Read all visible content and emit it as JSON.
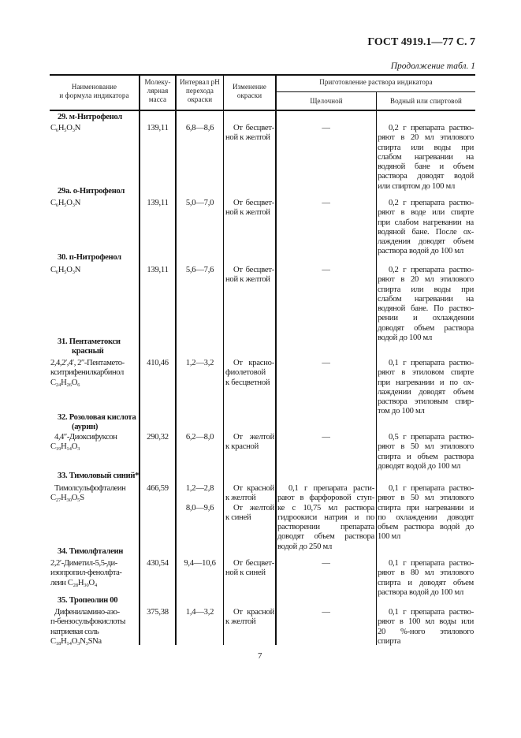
{
  "header": {
    "title": "ГОСТ 4919.1—77 С. 7",
    "continuation": "Продолжение табл. 1"
  },
  "table_header": {
    "name": [
      "Наименование",
      "и формула индикатора"
    ],
    "mass": [
      "Молеку-",
      "лярная",
      "масса"
    ],
    "ph": [
      "Интервал pH",
      "перехода",
      "окраски"
    ],
    "change": [
      "Изменение",
      "окраски"
    ],
    "preparation": "Приготовление раствора индикатора",
    "alkaline": "Щелочной",
    "aqueous": "Водный или спиртовой"
  },
  "rows": [
    {
      "title": [
        "29. м-Нитрофенол"
      ],
      "name": [
        "C₆H₅O₃N"
      ],
      "mass": "139,11",
      "ph": [
        "6,8—8,6"
      ],
      "change": [
        "От бесцвет-",
        "ной к желтой"
      ],
      "alkaline": [
        "—"
      ],
      "aqueous": [
        "0,2 г препарата раство-",
        "ряют в 20 мл этилового",
        "спирта или воды при",
        "слабом нагревании на",
        "водяной бане и объем",
        "раствора доводят водой",
        "или спиртом до 100 мл"
      ]
    },
    {
      "title": [
        "29а. о-Нитрофенол"
      ],
      "name": [
        "C₆H₅O₃N"
      ],
      "mass": "139,11",
      "ph": [
        "5,0—7,0"
      ],
      "change": [
        "От бесцвет-",
        "ной к желтой"
      ],
      "alkaline": [
        "—"
      ],
      "aqueous": [
        "0,2 г препарата раство-",
        "ряют в воде или спирте",
        "при слабом нагревании на",
        "водяной бане. После ох-",
        "лаждения доводят объем",
        "раствора водой до 100 мл"
      ]
    },
    {
      "title": [
        "30. п-Нитрофенол"
      ],
      "name": [
        "C₆H₅O₃N"
      ],
      "mass": "139,11",
      "ph": [
        "5,6—7,6"
      ],
      "change": [
        "От бесцвет-",
        "ной к желтой"
      ],
      "alkaline": [
        "—"
      ],
      "aqueous": [
        "0,2 г препарата раство-",
        "ряют в 20 мл этилового",
        "спирта или воды при",
        "слабом нагревании на",
        "водяной бане. По раство-",
        "рении и охлаждении",
        "доводят объем раствора",
        "водой до 100 мл"
      ]
    },
    {
      "title": [
        "31. Пентаметокси",
        "красный"
      ],
      "name": [
        "2,4,2′,4′, 2″-Пентамето-",
        "кситрифенилкарбинол",
        "C₂₄H₂₆O₆"
      ],
      "mass": "410,46",
      "ph": [
        "1,2—3,2"
      ],
      "change": [
        "От красно-",
        "фиолетовой",
        "к бесцветной"
      ],
      "alkaline": [
        "—"
      ],
      "aqueous": [
        "0,1 г препарата раство-",
        "ряют в этиловом спирте",
        "при нагревании и по ох-",
        "лаждении доводят объем",
        "раствора этиловым спир-",
        "том до 100 мл"
      ]
    },
    {
      "title": [
        "32. Розоловая кислота",
        "(аурин)"
      ],
      "name": [
        "4,4″-Диоксифуксон",
        "C₁₉H₁₄O₃"
      ],
      "mass": "290,32",
      "ph": [
        "6,2—8,0"
      ],
      "change": [
        "От желтой",
        "к красной"
      ],
      "alkaline": [
        "—"
      ],
      "aqueous": [
        "0,5 г препарата раство-",
        "ряют в 50 мл этилового",
        "спирта и объем раствора",
        "доводят водой до 100 мл"
      ]
    },
    {
      "title": [
        "33. Тимоловый синий*"
      ],
      "name": [
        "Тимолсульфофталеин",
        "C₂₇H₃₀O₅S"
      ],
      "mass": "466,59",
      "ph": [
        "1,2—2,8",
        "",
        "8,0—9,6"
      ],
      "change": [
        "От красной",
        "к желтой",
        "От желтой",
        "к синей"
      ],
      "alkaline": [
        "0,1 г препарата расти-",
        "рают в фарфоровой ступ-",
        "ке с 10,75 мл раствора",
        "гидроокиси натрия и по",
        "растворении препарата",
        "доводят объем раствора",
        "водой до 250 мл"
      ],
      "aqueous": [
        "0,1 г препарата раство-",
        "ряют в 50 мл этилового",
        "спирта при нагревании и",
        "по охлаждении доводят",
        "объем раствора водой до",
        "100 мл"
      ]
    },
    {
      "title": [
        "34. Тимолфталеин"
      ],
      "name": [
        "2,2′-Диметил-5,5-ди-",
        "изопропил-фенолфта-",
        "леин C₂₈H₃₀O₄"
      ],
      "mass": "430,54",
      "ph": [
        "9,4—10,6"
      ],
      "change": [
        "От бесцвет-",
        "ной к синей"
      ],
      "alkaline": [
        "—"
      ],
      "aqueous": [
        "0,1 г препарата раство-",
        "ряют в 80 мл этилового",
        "спирта и доводят объем",
        "раствора водой до 100 мл"
      ]
    },
    {
      "title": [
        "35. Тропеолин 00"
      ],
      "name": [
        "Дифениламино-азо-",
        "п-бензосульфокислоты",
        "натриевая соль",
        "C₁₈H₁₄O₃N₃SNa"
      ],
      "mass": "375,38",
      "ph": [
        "1,4—3,2"
      ],
      "change": [
        "От красной",
        "к желтой"
      ],
      "alkaline": [
        "—"
      ],
      "aqueous": [
        "0,1 г препарата раство-",
        "ряют в 100 мл воды или",
        "20 %-ного этилового",
        "спирта"
      ]
    }
  ],
  "page_number": "7"
}
